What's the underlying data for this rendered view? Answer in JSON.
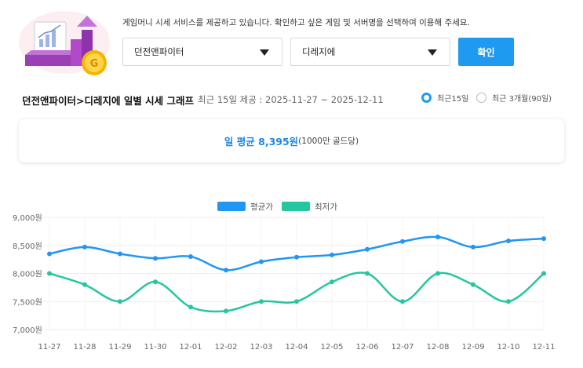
{
  "intro_text": "게임머니 시세 서비스를 제공하고 있습니다. 확인하고 싶은 게임 및 서버명을 선택하여 이용해 주세요.",
  "game_select": {
    "value": "던전앤파이터"
  },
  "server_select": {
    "value": "디레지에"
  },
  "confirm_label": "확인",
  "graph_title": "던전앤파이터>디레지에 일별 시세 그래프",
  "graph_subtitle": "최근 15일 제공 : 2025-11-27 ~ 2025-12-11",
  "period_options": [
    {
      "label": "최근15일",
      "selected": true
    },
    {
      "label": "최근 3개월(90일)",
      "selected": false
    }
  ],
  "average": {
    "main": "일 평균 8,395원",
    "unit": "(1000만 골드당)"
  },
  "illustration_icons": [
    "chart-board-icon",
    "bar-growth-icon",
    "gold-coin-icon"
  ],
  "coin_letter": "G",
  "chart_data": {
    "type": "line",
    "categories": [
      "11-27",
      "11-28",
      "11-29",
      "11-30",
      "12-01",
      "12-02",
      "12-03",
      "12-04",
      "12-05",
      "12-06",
      "12-07",
      "12-08",
      "12-09",
      "12-10",
      "12-11"
    ],
    "series": [
      {
        "name": "평균가",
        "color": "#2196f3",
        "values": [
          8350,
          8470,
          8350,
          8270,
          8300,
          8060,
          8210,
          8290,
          8330,
          8430,
          8570,
          8650,
          8470,
          8580,
          8620
        ]
      },
      {
        "name": "최저가",
        "color": "#26c6a0",
        "values": [
          8000,
          7800,
          7500,
          7850,
          7400,
          7330,
          7500,
          7500,
          7850,
          8000,
          7500,
          8000,
          7800,
          7500,
          8000
        ]
      }
    ],
    "yticks": [
      "9,000원",
      "8,500원",
      "8,000원",
      "7,500원",
      "7,000원"
    ],
    "ylim": [
      7000,
      9000
    ],
    "grid": true,
    "legend_position": "top-center"
  }
}
